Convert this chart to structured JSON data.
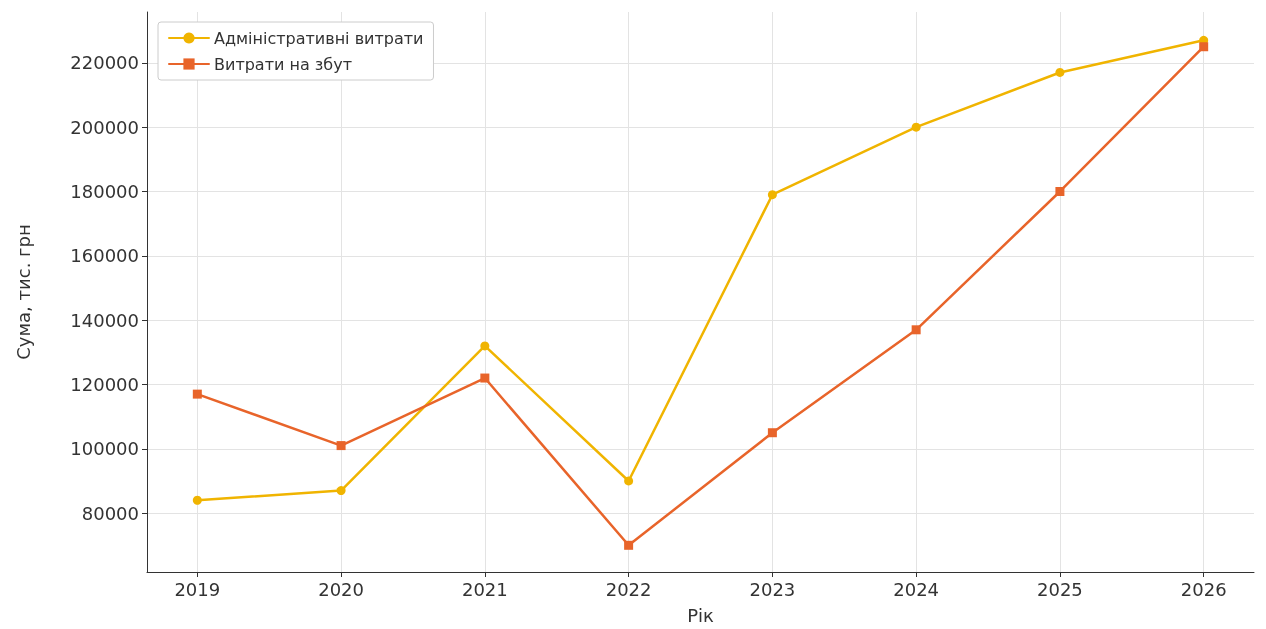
{
  "chart_data": {
    "type": "line",
    "xlabel": "Рік",
    "ylabel": "Сума, тис. грн",
    "x": [
      2019,
      2020,
      2021,
      2022,
      2023,
      2024,
      2025,
      2026
    ],
    "xlim": [
      2018.65,
      2026.35
    ],
    "xticks": [
      2019,
      2020,
      2021,
      2022,
      2023,
      2024,
      2025,
      2026
    ],
    "ylim": [
      61700,
      235800
    ],
    "yticks": [
      80000,
      100000,
      120000,
      140000,
      160000,
      180000,
      200000,
      220000
    ],
    "grid": true,
    "legend": "top left",
    "line_style": "solid",
    "series": [
      {
        "name": "Адміністративні витрати",
        "color": "#f0b400",
        "marker": "circle",
        "values": [
          84000,
          87000,
          132000,
          90000,
          179000,
          200000,
          217000,
          227000
        ]
      },
      {
        "name": "Витрати на збут",
        "color": "#e8642a",
        "marker": "square",
        "values": [
          117000,
          101000,
          122000,
          70000,
          105000,
          137000,
          180000,
          225000
        ]
      }
    ]
  }
}
